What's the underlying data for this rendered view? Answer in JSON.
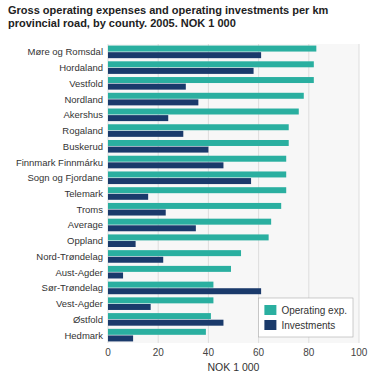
{
  "chart_data": {
    "type": "bar",
    "orientation": "horizontal",
    "title": "Gross operating expenses and operating investments per km provincial road, by county. 2005. NOK 1 000",
    "categories": [
      "Møre og Romsdal",
      "Hordaland",
      "Vestfold",
      "Nordland",
      "Akershus",
      "Rogaland",
      "Buskerud",
      "Finnmark Finnmárku",
      "Sogn og Fjordane",
      "Telemark",
      "Troms",
      "Average",
      "Oppland",
      "Nord-Trøndelag",
      "Aust-Agder",
      "Sør-Trøndelag",
      "Vest-Agder",
      "Østfold",
      "Hedmark"
    ],
    "series": [
      {
        "name": "Operating exp.",
        "color": "#2aafa0",
        "values": [
          83,
          82,
          82,
          78,
          76,
          72,
          72,
          71,
          71,
          71,
          69,
          65,
          64,
          53,
          49,
          42,
          42,
          41,
          39
        ]
      },
      {
        "name": "Investments",
        "color": "#1a3a6b",
        "values": [
          61,
          58,
          31,
          36,
          24,
          30,
          40,
          46,
          57,
          16,
          23,
          35,
          11,
          22,
          6,
          61,
          17,
          46,
          10
        ]
      }
    ],
    "xlabel": "NOK 1 000",
    "xlim": [
      0,
      100
    ],
    "xticks": [
      0,
      20,
      40,
      60,
      80,
      100
    ],
    "grid": true,
    "legend": "lower right"
  }
}
